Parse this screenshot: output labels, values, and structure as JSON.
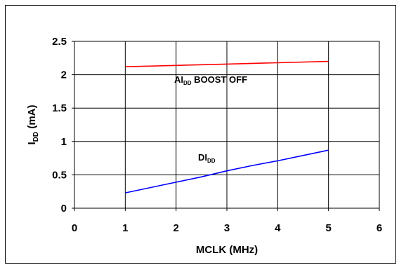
{
  "chart_data": {
    "type": "line",
    "xlabel": "MCLK (MHz)",
    "ylabel": {
      "main": "I",
      "sub": "DD",
      "suffix": " (mA)"
    },
    "xlim": [
      0,
      6
    ],
    "ylim": [
      0,
      2.5
    ],
    "x_ticks": [
      "0",
      "1",
      "2",
      "3",
      "4",
      "5",
      "6"
    ],
    "y_ticks": [
      "0",
      "0.5",
      "1",
      "1.5",
      "2",
      "2.5"
    ],
    "grid": true,
    "series": [
      {
        "id": "aidd",
        "label": {
          "main": "AI",
          "sub": "DD",
          "suffix": " BOOST OFF"
        },
        "color": "#ff0000",
        "x": [
          1,
          2,
          3,
          4,
          5
        ],
        "y": [
          2.12,
          2.14,
          2.16,
          2.18,
          2.2
        ]
      },
      {
        "id": "didd",
        "label": {
          "main": "DI",
          "sub": "DD",
          "suffix": ""
        },
        "color": "#0000ff",
        "x": [
          1,
          1.5,
          2,
          2.5,
          3,
          3.5,
          4,
          4.5,
          5
        ],
        "y": [
          0.23,
          0.31,
          0.39,
          0.47,
          0.56,
          0.64,
          0.71,
          0.79,
          0.87
        ]
      }
    ]
  }
}
